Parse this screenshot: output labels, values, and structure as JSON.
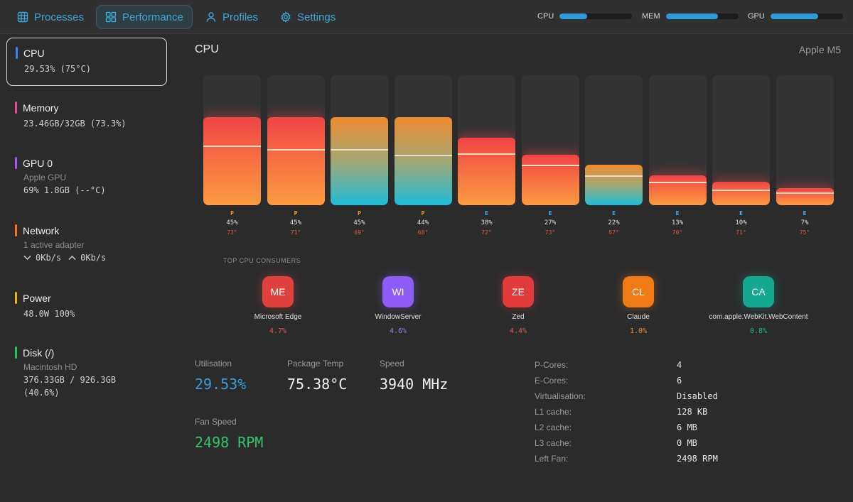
{
  "nav": {
    "tabs": [
      {
        "label": "Processes",
        "icon": "grid-icon"
      },
      {
        "label": "Performance",
        "icon": "dashboard-icon"
      },
      {
        "label": "Profiles",
        "icon": "user-icon"
      },
      {
        "label": "Settings",
        "icon": "gear-icon"
      }
    ],
    "active_tab": "Performance",
    "meters": [
      {
        "label": "CPU",
        "level": 0.38
      },
      {
        "label": "MEM",
        "level": 0.72
      },
      {
        "label": "GPU",
        "level": 0.66
      }
    ]
  },
  "sidebar": {
    "items": [
      {
        "title": "CPU",
        "lines": [
          "29.53% (75°C)"
        ],
        "color": "#3b82f6",
        "active": true
      },
      {
        "title": "Memory",
        "lines": [
          "23.46GB/32GB (73.3%)"
        ],
        "color": "#ec4899"
      },
      {
        "title": "GPU 0",
        "sub": "Apple GPU",
        "lines": [
          "69% 1.8GB (--°C)"
        ],
        "color": "#a855f7"
      },
      {
        "title": "Network",
        "sub": "1 active adapter",
        "down": "0Kb/s",
        "up": "0Kb/s",
        "color": "#f97316"
      },
      {
        "title": "Power",
        "lines": [
          "48.0W 100%"
        ],
        "color": "#eab308"
      },
      {
        "title": "Disk (/)",
        "sub": "Macintosh HD",
        "lines": [
          "376.33GB / 926.3GB",
          "(40.6%)"
        ],
        "color": "#22c55e"
      }
    ]
  },
  "main": {
    "title": "CPU",
    "model": "Apple M5",
    "cores": [
      {
        "type": "P",
        "usage": "45%",
        "temp": "73°",
        "level": 0.68,
        "avg": 0.46,
        "style": "hot"
      },
      {
        "type": "P",
        "usage": "45%",
        "temp": "71°",
        "level": 0.68,
        "avg": 0.43,
        "style": "hot"
      },
      {
        "type": "P",
        "usage": "45%",
        "temp": "69°",
        "level": 0.68,
        "avg": 0.43,
        "style": "cool"
      },
      {
        "type": "P",
        "usage": "44%",
        "temp": "68°",
        "level": 0.68,
        "avg": 0.39,
        "style": "cool"
      },
      {
        "type": "E",
        "usage": "38%",
        "temp": "72°",
        "level": 0.52,
        "avg": 0.4,
        "style": "hot"
      },
      {
        "type": "E",
        "usage": "27%",
        "temp": "73°",
        "level": 0.39,
        "avg": 0.31,
        "style": "hot"
      },
      {
        "type": "E",
        "usage": "22%",
        "temp": "67°",
        "level": 0.31,
        "avg": 0.23,
        "style": "cool"
      },
      {
        "type": "E",
        "usage": "13%",
        "temp": "70°",
        "level": 0.23,
        "avg": 0.18,
        "style": "hot"
      },
      {
        "type": "E",
        "usage": "10%",
        "temp": "71°",
        "level": 0.18,
        "avg": 0.12,
        "style": "hot"
      },
      {
        "type": "E",
        "usage": "7%",
        "temp": "75°",
        "level": 0.13,
        "avg": 0.1,
        "style": "hot"
      }
    ],
    "consumers_label": "TOP CPU CONSUMERS",
    "consumers": [
      {
        "abbr": "ME",
        "name": "Microsoft Edge",
        "pct": "4.7%",
        "color": "#e0413f",
        "pct_color": "#e65a50"
      },
      {
        "abbr": "WI",
        "name": "WindowServer",
        "pct": "4.6%",
        "color": "#8b5cf6",
        "pct_color": "#9b7ff0"
      },
      {
        "abbr": "ZE",
        "name": "Zed",
        "pct": "4.4%",
        "color": "#e23b3b",
        "pct_color": "#e65a50"
      },
      {
        "abbr": "CL",
        "name": "Claude",
        "pct": "1.0%",
        "color": "#f07a16",
        "pct_color": "#f08a30"
      },
      {
        "abbr": "CA",
        "name": "com.apple.WebKit.WebContent",
        "pct": "0.8%",
        "color": "#14a88f",
        "pct_color": "#1fb894"
      }
    ],
    "stats": {
      "utilisation_label": "Utilisation",
      "utilisation": "29.53%",
      "temp_label": "Package Temp",
      "temp": "75.38°C",
      "speed_label": "Speed",
      "speed": "3940 MHz",
      "fan_label": "Fan Speed",
      "fan": "2498 RPM"
    },
    "info": [
      {
        "key": "P-Cores:",
        "value": "4"
      },
      {
        "key": "E-Cores:",
        "value": "6"
      },
      {
        "key": "Virtualisation:",
        "value": "Disabled"
      },
      {
        "key": "L1 cache:",
        "value": "128 KB"
      },
      {
        "key": "L2 cache:",
        "value": "6 MB"
      },
      {
        "key": "L3 cache:",
        "value": "0 MB"
      },
      {
        "key": "Left Fan:",
        "value": "2498 RPM"
      }
    ],
    "colors": {
      "accent": "#3aa7d4",
      "p_core": "#f59e0b",
      "e_core": "#38bdf8",
      "fan": "#35c46a",
      "utilisation": "#3b9bd8"
    }
  }
}
